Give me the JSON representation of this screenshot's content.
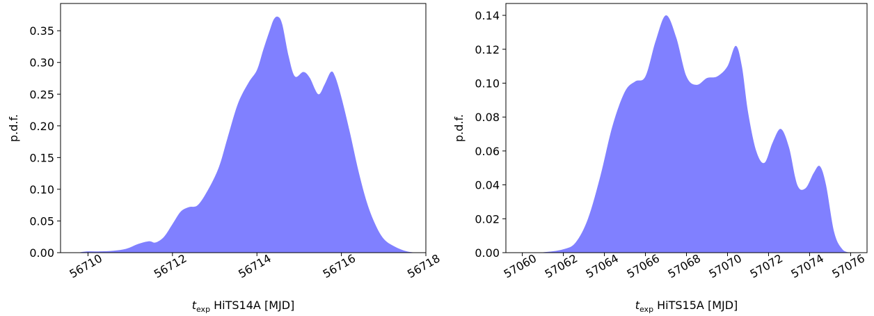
{
  "chart_data": [
    {
      "type": "area",
      "xlabel": {
        "var": "t",
        "sub": "exp",
        "text": " HiTS14A [MJD]"
      },
      "ylabel": "p.d.f.",
      "xlim": [
        56709.35,
        56718.0
      ],
      "ylim": [
        0,
        0.393
      ],
      "xticks": [
        56710,
        56712,
        56714,
        56716,
        56718
      ],
      "xtick_labels": [
        "56710",
        "56712",
        "56714",
        "56716",
        "56718"
      ],
      "yticks": [
        0.0,
        0.05,
        0.1,
        0.15,
        0.2,
        0.25,
        0.3,
        0.35
      ],
      "ytick_labels": [
        "0.00",
        "0.05",
        "0.10",
        "0.15",
        "0.20",
        "0.25",
        "0.30",
        "0.35"
      ],
      "grid": false,
      "color": "#8080ff",
      "series": [
        {
          "x": [
            56709.75,
            56710.0,
            56710.3,
            56710.6,
            56710.9,
            56711.2,
            56711.45,
            56711.6,
            56711.8,
            56712.0,
            56712.2,
            56712.4,
            56712.6,
            56712.85,
            56713.1,
            56713.3,
            56713.55,
            56713.8,
            56714.0,
            56714.15,
            56714.3,
            56714.4,
            56714.5,
            56714.6,
            56714.75,
            56714.9,
            56715.1,
            56715.25,
            56715.45,
            56715.6,
            56715.75,
            56715.85,
            56716.0,
            56716.2,
            56716.4,
            56716.6,
            56716.8,
            56717.0,
            56717.25,
            56717.55,
            56717.8
          ],
          "y": [
            0.0,
            0.002,
            0.002,
            0.003,
            0.006,
            0.014,
            0.018,
            0.016,
            0.025,
            0.045,
            0.065,
            0.072,
            0.075,
            0.1,
            0.135,
            0.18,
            0.235,
            0.268,
            0.288,
            0.32,
            0.35,
            0.368,
            0.372,
            0.36,
            0.31,
            0.278,
            0.285,
            0.276,
            0.25,
            0.265,
            0.285,
            0.278,
            0.245,
            0.19,
            0.13,
            0.08,
            0.045,
            0.022,
            0.01,
            0.002,
            0.0
          ]
        }
      ]
    },
    {
      "type": "area",
      "xlabel": {
        "var": "t",
        "sub": "exp",
        "text": " HiTS15A [MJD]"
      },
      "ylabel": "p.d.f.",
      "xlim": [
        57059.2,
        57076.8
      ],
      "ylim": [
        0,
        0.147
      ],
      "xticks": [
        57060,
        57062,
        57064,
        57066,
        57068,
        57070,
        57072,
        57074,
        57076
      ],
      "xtick_labels": [
        "57060",
        "57062",
        "57064",
        "57066",
        "57068",
        "57070",
        "57072",
        "57074",
        "57076"
      ],
      "yticks": [
        0.0,
        0.02,
        0.04,
        0.06,
        0.08,
        0.1,
        0.12,
        0.14
      ],
      "ytick_labels": [
        "0.00",
        "0.02",
        "0.04",
        "0.06",
        "0.08",
        "0.10",
        "0.12",
        "0.14"
      ],
      "grid": false,
      "color": "#8080ff",
      "series": [
        {
          "x": [
            57060.0,
            57061.0,
            57062.0,
            57062.6,
            57063.2,
            57063.8,
            57064.4,
            57065.0,
            57065.5,
            57066.0,
            57066.5,
            57067.0,
            57067.5,
            57068.0,
            57068.5,
            57069.0,
            57069.5,
            57070.0,
            57070.4,
            57070.7,
            57071.0,
            57071.4,
            57071.8,
            57072.2,
            57072.6,
            57073.0,
            57073.4,
            57073.8,
            57074.2,
            57074.5,
            57074.8,
            57075.2,
            57075.6,
            57076.0
          ],
          "y": [
            0.0,
            0.0002,
            0.002,
            0.006,
            0.02,
            0.045,
            0.075,
            0.095,
            0.101,
            0.104,
            0.125,
            0.14,
            0.127,
            0.104,
            0.099,
            0.103,
            0.104,
            0.11,
            0.122,
            0.11,
            0.083,
            0.06,
            0.053,
            0.065,
            0.073,
            0.062,
            0.04,
            0.038,
            0.047,
            0.051,
            0.04,
            0.012,
            0.002,
            0.0
          ]
        }
      ]
    }
  ]
}
